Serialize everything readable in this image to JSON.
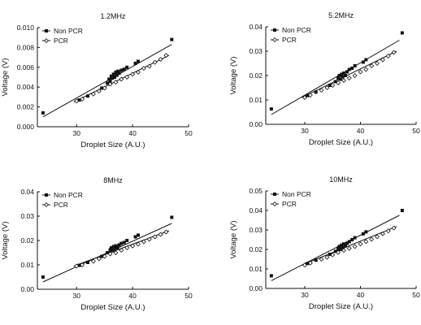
{
  "chart_data": [
    {
      "type": "scatter",
      "title": "1.2MHz",
      "xlabel": "Droplet Size (A.U.)",
      "ylabel": "Voltage (V)",
      "xlim": [
        23,
        50
      ],
      "ylim": [
        0,
        0.01
      ],
      "xticks": [
        "30",
        "40",
        "50"
      ],
      "yticks": [
        "0.000",
        "0.002",
        "0.004",
        "0.006",
        "0.008",
        "0.010"
      ],
      "legend_position": "top-left",
      "series": [
        {
          "name": "Non PCR",
          "marker": "filled-square",
          "x": [
            24,
            30.5,
            32,
            34.5,
            35.5,
            35.8,
            36,
            36.2,
            36.4,
            36.6,
            36.8,
            37,
            37.2,
            37.4,
            37.6,
            38,
            38.5,
            39,
            40.5,
            41,
            47
          ],
          "y": [
            0.0014,
            0.0027,
            0.0031,
            0.0039,
            0.0044,
            0.0048,
            0.0046,
            0.0051,
            0.0049,
            0.0053,
            0.005,
            0.0055,
            0.0052,
            0.0056,
            0.0054,
            0.0057,
            0.0058,
            0.006,
            0.0064,
            0.0066,
            0.0088
          ],
          "fit": [
            [
              24,
              0.001
            ],
            [
              47,
              0.0083
            ]
          ]
        },
        {
          "name": "PCR",
          "marker": "open-diamond",
          "x": [
            30,
            31,
            33,
            34,
            35,
            36,
            37,
            38,
            39,
            40,
            41,
            42,
            43,
            44,
            45,
            46
          ],
          "y": [
            0.0026,
            0.0028,
            0.0033,
            0.0036,
            0.0039,
            0.0043,
            0.0045,
            0.0048,
            0.005,
            0.0053,
            0.0055,
            0.0059,
            0.0061,
            0.0065,
            0.0068,
            0.0072
          ],
          "fit": [
            [
              29.5,
              0.0025
            ],
            [
              46.5,
              0.0072
            ]
          ]
        }
      ]
    },
    {
      "type": "scatter",
      "title": "5.2MHz",
      "xlabel": "Droplet Size (A.U.)",
      "ylabel": "Voltage (V)",
      "xlim": [
        23,
        50
      ],
      "ylim": [
        0,
        0.04
      ],
      "xticks": [
        "30",
        "40",
        "50"
      ],
      "yticks": [
        "0.00",
        "0.01",
        "0.02",
        "0.03",
        "0.04"
      ],
      "legend_position": "top-left",
      "series": [
        {
          "name": "Non PCR",
          "marker": "filled-square",
          "x": [
            24,
            30.5,
            32,
            34.5,
            35.5,
            36,
            36.2,
            36.4,
            36.6,
            36.8,
            37,
            37.3,
            37.6,
            38,
            38.5,
            39,
            40.5,
            41,
            47.5
          ],
          "y": [
            0.0063,
            0.0118,
            0.0132,
            0.016,
            0.0175,
            0.019,
            0.02,
            0.0185,
            0.0205,
            0.0195,
            0.021,
            0.02,
            0.0215,
            0.0225,
            0.023,
            0.024,
            0.0255,
            0.0265,
            0.0375
          ],
          "fit": [
            [
              24,
              0.004
            ],
            [
              47,
              0.0345
            ]
          ]
        },
        {
          "name": "PCR",
          "marker": "open-diamond",
          "x": [
            30,
            31,
            33,
            34,
            35,
            36,
            37,
            38,
            39,
            40,
            41,
            42,
            43,
            44,
            45,
            46
          ],
          "y": [
            0.011,
            0.012,
            0.014,
            0.015,
            0.016,
            0.017,
            0.018,
            0.019,
            0.02,
            0.0215,
            0.0225,
            0.024,
            0.025,
            0.0265,
            0.028,
            0.0295
          ],
          "fit": [
            [
              29.5,
              0.011
            ],
            [
              46.5,
              0.03
            ]
          ]
        }
      ]
    },
    {
      "type": "scatter",
      "title": "8MHz",
      "xlabel": "Droplet Size (A.U.)",
      "ylabel": "Voltage (V)",
      "xlim": [
        23,
        50
      ],
      "ylim": [
        0,
        0.04
      ],
      "xticks": [
        "30",
        "40",
        "50"
      ],
      "yticks": [
        "0.00",
        "0.01",
        "0.02",
        "0.03",
        "0.04"
      ],
      "legend_position": "top-left",
      "series": [
        {
          "name": "Non PCR",
          "marker": "filled-square",
          "x": [
            24,
            30.5,
            32,
            34.5,
            35.5,
            36,
            36.2,
            36.4,
            36.6,
            36.8,
            37,
            37.3,
            37.6,
            38,
            38.5,
            39,
            40.5,
            41,
            47
          ],
          "y": [
            0.005,
            0.0098,
            0.011,
            0.0135,
            0.015,
            0.0162,
            0.017,
            0.0158,
            0.0175,
            0.0165,
            0.0178,
            0.017,
            0.0182,
            0.0188,
            0.0192,
            0.02,
            0.0215,
            0.0222,
            0.0295
          ],
          "fit": [
            [
              24,
              0.003
            ],
            [
              47,
              0.027
            ]
          ]
        },
        {
          "name": "PCR",
          "marker": "open-diamond",
          "x": [
            30,
            31,
            33,
            34,
            35,
            36,
            37,
            38,
            39,
            40,
            41,
            42,
            43,
            44,
            45,
            46
          ],
          "y": [
            0.0095,
            0.01,
            0.0115,
            0.0125,
            0.0135,
            0.0145,
            0.015,
            0.016,
            0.017,
            0.0178,
            0.0185,
            0.0195,
            0.0205,
            0.0215,
            0.0225,
            0.0235
          ],
          "fit": [
            [
              29.5,
              0.0095
            ],
            [
              46.5,
              0.024
            ]
          ]
        }
      ]
    },
    {
      "type": "scatter",
      "title": "10MHz",
      "xlabel": "Droplet Size (A.U.)",
      "ylabel": "Voltage (V)",
      "xlim": [
        23,
        50
      ],
      "ylim": [
        0,
        0.05
      ],
      "xticks": [
        "30",
        "40",
        "50"
      ],
      "yticks": [
        "0.00",
        "0.01",
        "0.02",
        "0.03",
        "0.04",
        "0.05"
      ],
      "legend_position": "top-left",
      "series": [
        {
          "name": "Non PCR",
          "marker": "filled-square",
          "x": [
            24,
            30.5,
            32,
            34.5,
            35.5,
            36,
            36.2,
            36.4,
            36.6,
            36.8,
            37,
            37.3,
            37.6,
            38,
            38.5,
            39,
            40.5,
            41,
            47.5
          ],
          "y": [
            0.0065,
            0.0128,
            0.0145,
            0.0175,
            0.019,
            0.0205,
            0.0215,
            0.02,
            0.0222,
            0.021,
            0.0228,
            0.0218,
            0.0232,
            0.024,
            0.025,
            0.026,
            0.028,
            0.029,
            0.04
          ],
          "fit": [
            [
              24,
              0.004
            ],
            [
              47,
              0.0375
            ]
          ]
        },
        {
          "name": "PCR",
          "marker": "open-diamond",
          "x": [
            30,
            31,
            33,
            34,
            35,
            36,
            37,
            38,
            39,
            40,
            41,
            42,
            43,
            44,
            45,
            46
          ],
          "y": [
            0.012,
            0.013,
            0.015,
            0.016,
            0.0172,
            0.0185,
            0.0195,
            0.0205,
            0.0215,
            0.0228,
            0.024,
            0.0252,
            0.0265,
            0.028,
            0.0295,
            0.031
          ],
          "fit": [
            [
              29.5,
              0.012
            ],
            [
              46.5,
              0.0318
            ]
          ]
        }
      ]
    }
  ]
}
